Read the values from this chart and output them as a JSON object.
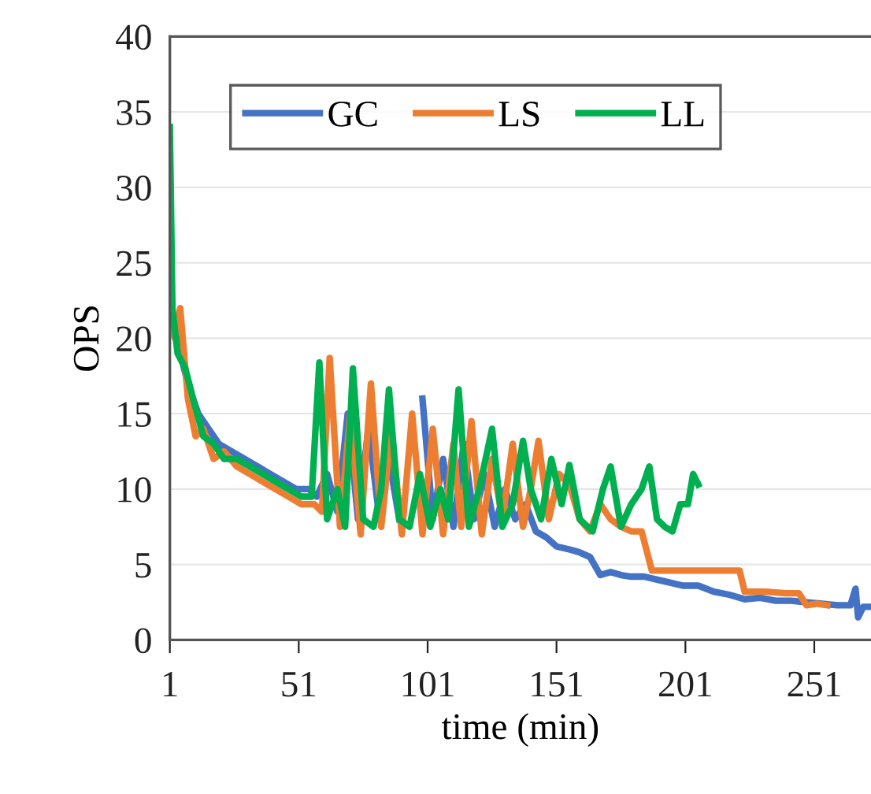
{
  "chart_data": {
    "type": "line",
    "xlabel": "time (min)",
    "ylabel": "OPS",
    "xlim": [
      1,
      273
    ],
    "xticks": [
      1,
      51,
      101,
      151,
      201,
      251
    ],
    "ylim": [
      0,
      40
    ],
    "yticks": [
      0,
      5,
      10,
      15,
      20,
      25,
      30,
      35,
      40
    ],
    "grid": "y",
    "legend": "top left",
    "line_style": "solid",
    "marker": "none",
    "series": [
      {
        "name": "GC",
        "color": "#4472c4",
        "x": [
          1,
          5,
          8,
          12,
          16,
          20,
          25,
          30,
          35,
          40,
          45,
          50,
          55,
          58,
          62,
          66,
          70,
          74,
          78,
          82,
          86,
          90,
          94,
          99,
          103,
          107,
          111,
          115,
          119,
          123,
          127,
          131,
          135,
          139,
          143,
          147,
          151,
          156,
          160,
          164,
          168,
          172,
          176,
          180,
          185,
          190,
          195,
          200,
          206,
          212,
          218,
          224,
          230,
          236,
          242,
          248,
          254,
          260,
          265,
          267,
          268,
          270,
          273
        ],
        "values": [
          22,
          19,
          17,
          15,
          14,
          13,
          12.5,
          12,
          11.5,
          11,
          10.5,
          10,
          10,
          9.5,
          11,
          8.5,
          15,
          8,
          14,
          8.5,
          12,
          8,
          null,
          16,
          8,
          12,
          7.5,
          13,
          8,
          11,
          7.5,
          10,
          8,
          9,
          7.2,
          6.8,
          6.2,
          6,
          5.8,
          5.5,
          4.3,
          4.5,
          4.3,
          4.2,
          4.2,
          4,
          3.8,
          3.6,
          3.6,
          3.2,
          3,
          2.7,
          2.8,
          2.6,
          2.6,
          2.5,
          2.4,
          2.3,
          2.3,
          3.4,
          1.5,
          2.2,
          2.2
        ]
      },
      {
        "name": "LS",
        "color": "#ed7d31",
        "x": [
          1,
          3,
          5,
          8,
          11,
          14,
          18,
          22,
          27,
          32,
          37,
          42,
          47,
          52,
          57,
          60,
          63,
          67,
          71,
          75,
          79,
          83,
          87,
          91,
          95,
          99,
          103,
          107,
          111,
          114,
          118,
          122,
          126,
          130,
          134,
          138,
          141,
          144,
          148,
          152,
          156,
          160,
          164,
          168,
          172,
          176,
          180,
          184,
          188,
          195,
          205,
          215,
          222,
          224,
          232,
          240,
          245,
          248,
          252,
          256
        ],
        "values": [
          21,
          20,
          22,
          16,
          13.5,
          14,
          12,
          12.5,
          11.5,
          11,
          10.5,
          10,
          9.5,
          9,
          9,
          8.5,
          18.7,
          7.5,
          15,
          7,
          17,
          7.5,
          14,
          7,
          15,
          7,
          14,
          7,
          13,
          7.5,
          14.5,
          7,
          12,
          8,
          13,
          7.5,
          10,
          13.2,
          8,
          11,
          10.3,
          8,
          7.2,
          9,
          8,
          7.5,
          7.2,
          7.2,
          4.6,
          4.6,
          4.6,
          4.6,
          4.6,
          3.2,
          3.2,
          3.1,
          3.1,
          2.3,
          2.4,
          2.3
        ]
      },
      {
        "name": "LL",
        "color": "#00b050",
        "x": [
          1,
          2,
          4,
          7,
          10,
          14,
          18,
          22,
          27,
          32,
          37,
          42,
          47,
          52,
          56,
          59,
          62,
          66,
          69,
          72,
          76,
          80,
          83,
          86,
          90,
          94,
          98,
          102,
          106,
          109,
          113,
          117,
          121,
          126,
          130,
          134,
          138,
          141,
          145,
          149,
          153,
          156,
          160,
          165,
          169,
          172,
          176,
          180,
          184,
          187,
          190,
          193,
          196,
          199,
          202,
          204,
          206
        ],
        "values": [
          34,
          22,
          19,
          18,
          16,
          13.5,
          13,
          12,
          12,
          11.5,
          11,
          10.5,
          10,
          9.5,
          9.5,
          18.4,
          8,
          10,
          7.5,
          18,
          8,
          7.5,
          10,
          16.6,
          8,
          7.5,
          11,
          7.5,
          10,
          8,
          16.6,
          7.5,
          10,
          14,
          7.5,
          9,
          13.2,
          10,
          8,
          12,
          9,
          11.6,
          8,
          7.2,
          10,
          11.5,
          7.5,
          9,
          10,
          11.5,
          8,
          7.5,
          7.2,
          9,
          9,
          11,
          10.3
        ]
      }
    ]
  }
}
